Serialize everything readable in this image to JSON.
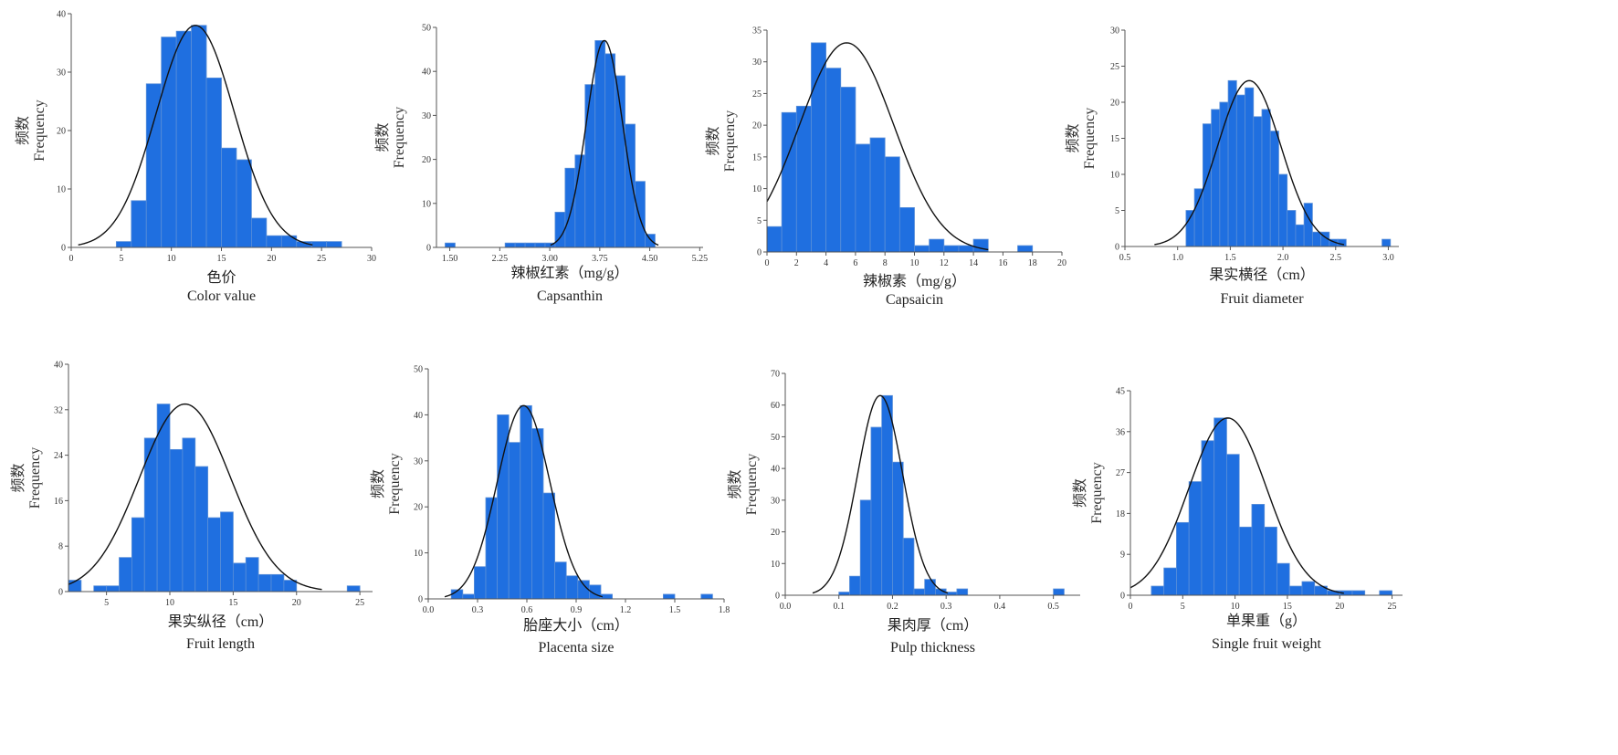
{
  "colors": {
    "bar": "#1f6fe0",
    "bar_edge": "#5a8fd8",
    "curve": "#111111",
    "axis": "#555555"
  },
  "chart_data": [
    {
      "type": "bar",
      "xlabel_zh": "色价",
      "xlabel_en": "Color value",
      "ylabel_zh": "频数",
      "ylabel_en": "Frequency",
      "xlim": [
        0,
        30
      ],
      "ylim": [
        0,
        40
      ],
      "xticks": [
        0,
        5,
        10,
        15,
        20,
        25,
        30
      ],
      "yticks": [
        0,
        10,
        20,
        30,
        40
      ],
      "bin_width": 1.5,
      "bins": [
        4.5,
        6,
        7.5,
        9,
        10.5,
        12,
        13.5,
        15,
        16.5,
        18,
        19.5,
        21,
        22.5,
        24,
        25.5
      ],
      "values": [
        1,
        8,
        28,
        36,
        37,
        38,
        29,
        17,
        15,
        5,
        2,
        2,
        1,
        1,
        1
      ],
      "normal_curve": {
        "mean": 12.4,
        "sd": 3.9,
        "peak": 38
      }
    },
    {
      "type": "bar",
      "xlabel_zh": "辣椒红素（mg/g）",
      "xlabel_en": "Capsanthin",
      "ylabel_zh": "频数",
      "ylabel_en": "Frequency",
      "xlim": [
        1.3,
        5.3
      ],
      "ylim": [
        0,
        50
      ],
      "xticks": [
        1.5,
        2.25,
        3.0,
        3.75,
        4.5,
        5.25
      ],
      "xtick_labels": [
        "1.50",
        "2.25",
        "3.00",
        "3.75",
        "4.50",
        "5.25"
      ],
      "yticks": [
        0,
        10,
        20,
        30,
        40,
        50
      ],
      "bin_width": 0.15,
      "bins": [
        1.43,
        2.33,
        2.48,
        2.63,
        2.78,
        2.93,
        3.08,
        3.23,
        3.38,
        3.53,
        3.68,
        3.83,
        3.98,
        4.13,
        4.28,
        4.43
      ],
      "values": [
        1,
        1,
        1,
        1,
        1,
        1,
        8,
        18,
        21,
        37,
        47,
        44,
        39,
        28,
        15,
        3
      ],
      "normal_curve": {
        "mean": 3.82,
        "sd": 0.27,
        "peak": 47
      }
    },
    {
      "type": "bar",
      "xlabel_zh": "辣椒素（mg/g）",
      "xlabel_en": "Capsaicin",
      "ylabel_zh": "频数",
      "ylabel_en": "Frequency",
      "xlim": [
        0,
        20
      ],
      "ylim": [
        0,
        35
      ],
      "xticks": [
        0,
        2,
        4,
        6,
        8,
        10,
        12,
        14,
        16,
        18,
        20
      ],
      "yticks": [
        0,
        5,
        10,
        15,
        20,
        25,
        30,
        35
      ],
      "bin_width": 1,
      "bins": [
        0,
        1,
        2,
        3,
        4,
        5,
        6,
        7,
        8,
        9,
        10,
        11,
        12,
        13,
        14,
        15,
        16,
        17,
        18
      ],
      "values": [
        4,
        22,
        23,
        33,
        29,
        26,
        17,
        18,
        15,
        7,
        1,
        2,
        1,
        1,
        2,
        0,
        0,
        1,
        0
      ],
      "normal_curve": {
        "mean": 5.4,
        "sd": 3.2,
        "peak": 33
      }
    },
    {
      "type": "bar",
      "xlabel_zh": "果实横径（cm）",
      "xlabel_en": "Fruit diameter",
      "ylabel_zh": "频数",
      "ylabel_en": "Frequency",
      "xlim": [
        0.5,
        3.1
      ],
      "ylim": [
        0,
        30
      ],
      "xticks": [
        0.5,
        1.0,
        1.5,
        2.0,
        2.5,
        3.0
      ],
      "xtick_labels": [
        "0.5",
        "1.0",
        "1.5",
        "2.0",
        "2.5",
        "3.0"
      ],
      "yticks": [
        0,
        5,
        10,
        15,
        20,
        25,
        30
      ],
      "bin_width": 0.08,
      "bins": [
        1.08,
        1.16,
        1.24,
        1.32,
        1.4,
        1.48,
        1.56,
        1.64,
        1.72,
        1.8,
        1.88,
        1.96,
        2.04,
        2.12,
        2.2,
        2.28,
        2.36,
        2.44,
        2.52,
        2.94
      ],
      "values": [
        5,
        8,
        17,
        19,
        20,
        23,
        21,
        22,
        18,
        19,
        16,
        10,
        5,
        3,
        6,
        2,
        2,
        1,
        1,
        1
      ],
      "normal_curve": {
        "mean": 1.68,
        "sd": 0.3,
        "peak": 23
      }
    },
    {
      "type": "bar",
      "xlabel_zh": "果实纵径（cm）",
      "xlabel_en": "Fruit length",
      "ylabel_zh": "频数",
      "ylabel_en": "Frequency",
      "xlim": [
        2,
        26
      ],
      "ylim": [
        0,
        40
      ],
      "xticks": [
        5,
        10,
        15,
        20,
        25
      ],
      "yticks": [
        0,
        8,
        16,
        24,
        32,
        40
      ],
      "bin_width": 1,
      "bins": [
        2,
        4,
        5,
        6,
        7,
        8,
        9,
        10,
        11,
        12,
        13,
        14,
        15,
        16,
        17,
        18,
        19,
        24
      ],
      "values": [
        2,
        1,
        1,
        6,
        13,
        27,
        33,
        25,
        27,
        22,
        13,
        14,
        5,
        6,
        3,
        3,
        2,
        1
      ],
      "normal_curve": {
        "mean": 11.2,
        "sd": 3.6,
        "peak": 33
      }
    },
    {
      "type": "bar",
      "xlabel_zh": "胎座大小（cm）",
      "xlabel_en": "Placenta size",
      "ylabel_zh": "频数",
      "ylabel_en": "Frequency",
      "xlim": [
        0,
        1.8
      ],
      "ylim": [
        0,
        50
      ],
      "xticks": [
        0.0,
        0.3,
        0.6,
        0.9,
        1.2,
        1.5,
        1.8
      ],
      "xtick_labels": [
        "0.0",
        "0.3",
        "0.6",
        "0.9",
        "1.2",
        "1.5",
        "1.8"
      ],
      "yticks": [
        0,
        10,
        20,
        30,
        40,
        50
      ],
      "bin_width": 0.07,
      "bins": [
        0.14,
        0.21,
        0.28,
        0.35,
        0.42,
        0.49,
        0.56,
        0.63,
        0.7,
        0.77,
        0.84,
        0.91,
        0.98,
        1.05,
        1.43,
        1.66
      ],
      "values": [
        2,
        1,
        7,
        22,
        40,
        34,
        42,
        37,
        23,
        8,
        5,
        4,
        3,
        1,
        1,
        1
      ],
      "normal_curve": {
        "mean": 0.58,
        "sd": 0.16,
        "peak": 42
      }
    },
    {
      "type": "bar",
      "xlabel_zh": "果肉厚（cm）",
      "xlabel_en": "Pulp thickness",
      "ylabel_zh": "频数",
      "ylabel_en": "Frequency",
      "xlim": [
        0,
        0.55
      ],
      "ylim": [
        0,
        70
      ],
      "xticks": [
        0.0,
        0.1,
        0.2,
        0.3,
        0.4,
        0.5
      ],
      "xtick_labels": [
        "0.0",
        "0.1",
        "0.2",
        "0.3",
        "0.4",
        "0.5"
      ],
      "yticks": [
        0,
        10,
        20,
        30,
        40,
        50,
        60,
        70
      ],
      "bin_width": 0.02,
      "bins": [
        0.1,
        0.12,
        0.14,
        0.16,
        0.18,
        0.2,
        0.22,
        0.24,
        0.26,
        0.28,
        0.3,
        0.32,
        0.5
      ],
      "values": [
        1,
        6,
        30,
        53,
        63,
        42,
        18,
        2,
        5,
        2,
        1,
        2,
        2
      ],
      "normal_curve": {
        "mean": 0.177,
        "sd": 0.042,
        "peak": 63
      }
    },
    {
      "type": "bar",
      "xlabel_zh": "单果重（g）",
      "xlabel_en": "Single fruit weight",
      "ylabel_zh": "频数",
      "ylabel_en": "Frequency",
      "xlim": [
        0,
        26
      ],
      "ylim": [
        0,
        45
      ],
      "xticks": [
        0,
        5,
        10,
        15,
        20,
        25
      ],
      "yticks": [
        0,
        9,
        18,
        27,
        36,
        45
      ],
      "bin_width": 1.2,
      "bins": [
        2,
        3.2,
        4.4,
        5.6,
        6.8,
        8.0,
        9.2,
        10.4,
        11.6,
        12.8,
        14.0,
        15.2,
        16.4,
        17.6,
        18.8,
        20.0,
        21.2,
        23.8
      ],
      "values": [
        2,
        6,
        16,
        25,
        34,
        39,
        31,
        15,
        20,
        15,
        7,
        2,
        3,
        2,
        1,
        1,
        1,
        1
      ],
      "normal_curve": {
        "mean": 9.3,
        "sd": 3.7,
        "peak": 39
      }
    }
  ]
}
